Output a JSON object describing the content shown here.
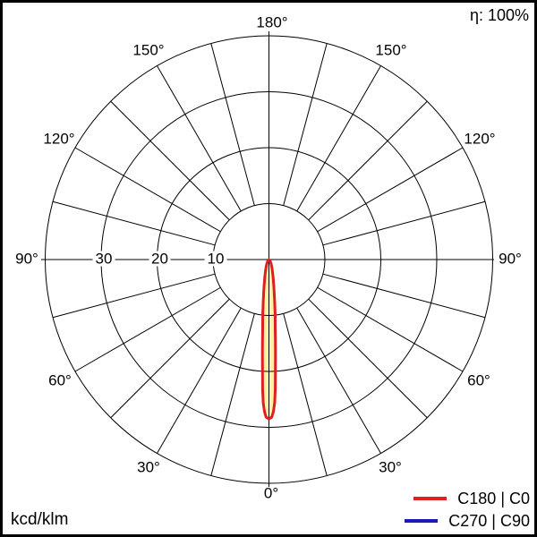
{
  "efficiency": {
    "label": "η: 100%"
  },
  "unit": {
    "label": "kcd/klm"
  },
  "legend": {
    "items": [
      {
        "label": "C180 | C0",
        "color": "#e02020"
      },
      {
        "label": "C270 | C90",
        "color": "#1a1ab8"
      }
    ]
  },
  "polar_axes": {
    "angle_labels": [
      {
        "text": "180°",
        "angle": 180,
        "side": "center"
      },
      {
        "text": "150°",
        "angle": 150,
        "side": "left"
      },
      {
        "text": "150°",
        "angle": 150,
        "side": "right"
      },
      {
        "text": "120°",
        "angle": 120,
        "side": "left"
      },
      {
        "text": "120°",
        "angle": 120,
        "side": "right"
      },
      {
        "text": "90°",
        "angle": 90,
        "side": "left"
      },
      {
        "text": "90°",
        "angle": 90,
        "side": "right"
      },
      {
        "text": "60°",
        "angle": 60,
        "side": "left"
      },
      {
        "text": "60°",
        "angle": 60,
        "side": "right"
      },
      {
        "text": "30°",
        "angle": 30,
        "side": "left"
      },
      {
        "text": "30°",
        "angle": 30,
        "side": "right"
      },
      {
        "text": "0°",
        "angle": 0,
        "side": "center"
      }
    ],
    "scale_labels": [
      {
        "text": "30",
        "value": 30
      },
      {
        "text": "20",
        "value": 20
      },
      {
        "text": "10",
        "value": 10
      }
    ],
    "ring_values": [
      10,
      20,
      30,
      40
    ],
    "angle_step_deg": 15
  },
  "chart_data": {
    "type": "line",
    "polar": true,
    "title": "",
    "radial_unit": "kcd/klm",
    "radial_ticks": [
      10,
      20,
      30,
      40
    ],
    "radial_max": 40,
    "gamma_deg": [
      0,
      1,
      1.7,
      2.3,
      2.8,
      3.3,
      4,
      4.6,
      5.3,
      6.5,
      8,
      10.4,
      14,
      19.3,
      26.6,
      36.9,
      45,
      90
    ],
    "series": [
      {
        "name": "C180 | C0",
        "color": "#e02020",
        "values": [
          28.5,
          28.2,
          27.2,
          25.6,
          23.2,
          20.0,
          16.8,
          14.4,
          12.1,
          9.7,
          7.3,
          4.9,
          3.0,
          1.7,
          0.9,
          0.4,
          0.1,
          0
        ]
      },
      {
        "name": "C270 | C90",
        "color": "#1a1ab8",
        "values": [
          28.5,
          28.2,
          27.2,
          25.6,
          23.2,
          20.0,
          16.8,
          14.4,
          12.1,
          9.7,
          7.3,
          4.9,
          3.0,
          1.7,
          0.9,
          0.4,
          0.1,
          0
        ]
      }
    ],
    "fill_color": "#fff1a3",
    "peak_value_kcd_klm": 28.5,
    "peak_direction_deg": 0,
    "efficiency": "100%",
    "legend_position": "bottom-right"
  },
  "colors": {
    "grid": "#000000",
    "background": "#ffffff",
    "frame": "#000000"
  }
}
